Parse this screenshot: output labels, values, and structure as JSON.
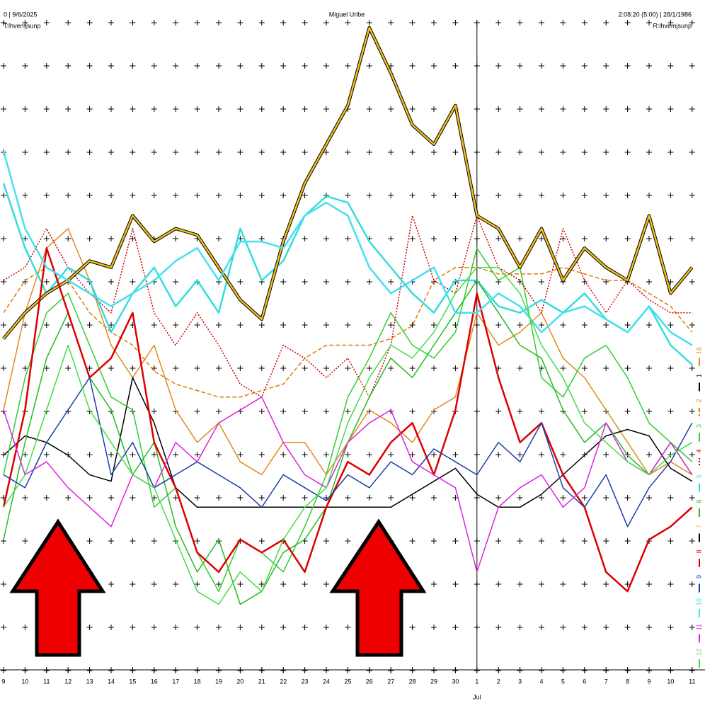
{
  "header": {
    "left": [
      "0 | 9/6/2025",
      "T:lhvemjsunp"
    ],
    "right": [
      "2:08:20 (5:00) | 28/1/1986",
      "R:lhvemjsunp"
    ]
  },
  "chart_data": {
    "type": "line",
    "title": "Miguel Uribe",
    "categories": [
      "9",
      "10",
      "11",
      "12",
      "13",
      "14",
      "15",
      "16",
      "17",
      "18",
      "19",
      "20",
      "21",
      "22",
      "23",
      "24",
      "25",
      "26",
      "27",
      "28",
      "29",
      "30",
      "1",
      "2",
      "3",
      "4",
      "5",
      "6",
      "7",
      "8",
      "9",
      "10",
      "11"
    ],
    "annotations": [
      "Jul"
    ],
    "ylim": [
      0,
      100
    ],
    "series": [
      {
        "name": "16",
        "color": "#e08a1e",
        "values": [
          40,
          55,
          65,
          68,
          60,
          50,
          45,
          50,
          40,
          35,
          38,
          32,
          30,
          35,
          35,
          30,
          35,
          40,
          38,
          35,
          40,
          42,
          55,
          50,
          52,
          55,
          48,
          45,
          40,
          35,
          30,
          32,
          30
        ]
      },
      {
        "name": "1",
        "color": "#000000",
        "values": [
          33,
          36,
          35,
          33,
          30,
          29,
          45,
          38,
          28,
          25,
          25,
          25,
          25,
          25,
          25,
          25,
          25,
          25,
          25,
          27,
          29,
          31,
          27,
          25,
          25,
          27,
          30,
          33,
          36,
          37,
          36,
          31,
          29
        ]
      },
      {
        "name": "2",
        "color": "#e07b00",
        "style": "dashed",
        "values": [
          55,
          60,
          62,
          60,
          55,
          52,
          50,
          46,
          44,
          43,
          42,
          42,
          43,
          44,
          48,
          50,
          50,
          50,
          51,
          53,
          60,
          62,
          62,
          61,
          61,
          61,
          62,
          61,
          60,
          60,
          58,
          56,
          52
        ]
      },
      {
        "name": "3",
        "color": "#33cc33",
        "values": [
          30,
          45,
          55,
          58,
          50,
          42,
          40,
          25,
          28,
          18,
          12,
          20,
          18,
          15,
          22,
          30,
          42,
          48,
          55,
          50,
          48,
          52,
          65,
          60,
          62,
          45,
          42,
          48,
          50,
          45,
          38,
          35,
          32
        ]
      },
      {
        "name": "4",
        "color": "#cc0000",
        "style": "dotted",
        "values": [
          60,
          62,
          68,
          62,
          58,
          55,
          68,
          55,
          50,
          55,
          50,
          44,
          42,
          50,
          48,
          45,
          48,
          42,
          50,
          70,
          60,
          58,
          70,
          62,
          60,
          55,
          68,
          60,
          55,
          60,
          57,
          55,
          55
        ]
      },
      {
        "name": "5",
        "color": "#33dddd",
        "values": [
          75,
          65,
          58,
          62,
          60,
          52,
          58,
          62,
          56,
          60,
          55,
          68,
          60,
          63,
          70,
          73,
          72,
          66,
          62,
          58,
          55,
          60,
          60,
          56,
          55,
          57,
          55,
          58,
          54,
          52,
          56,
          50,
          47
        ]
      },
      {
        "name": "6",
        "color": "#22bb22",
        "values": [
          20,
          35,
          48,
          55,
          45,
          40,
          30,
          35,
          22,
          15,
          20,
          10,
          12,
          18,
          20,
          25,
          35,
          42,
          48,
          45,
          50,
          55,
          60,
          55,
          50,
          48,
          40,
          35,
          38,
          33,
          30,
          35,
          30
        ]
      },
      {
        "name": "7",
        "color": "#f0c020",
        "outline": "#000000",
        "values": [
          51,
          55,
          58,
          60,
          63,
          62,
          70,
          66,
          68,
          67,
          62,
          57,
          54,
          66,
          75,
          81,
          87,
          99,
          92,
          84,
          81,
          87,
          70,
          68,
          62,
          68,
          60,
          65,
          62,
          60,
          70,
          58,
          62
        ]
      },
      {
        "name": "8",
        "color": "#dd0000",
        "values": [
          25,
          40,
          65,
          55,
          45,
          48,
          55,
          35,
          28,
          18,
          15,
          20,
          18,
          20,
          15,
          25,
          32,
          30,
          35,
          38,
          30,
          40,
          58,
          45,
          35,
          38,
          30,
          25,
          15,
          12,
          20,
          22,
          25
        ]
      },
      {
        "name": "9",
        "color": "#1a3fa8",
        "values": [
          30,
          28,
          35,
          40,
          45,
          30,
          35,
          28,
          30,
          32,
          30,
          28,
          25,
          30,
          28,
          26,
          30,
          28,
          32,
          30,
          34,
          32,
          30,
          35,
          32,
          38,
          28,
          25,
          30,
          22,
          28,
          32,
          38
        ]
      },
      {
        "name": "10",
        "color": "#44e0f0",
        "values": [
          80,
          68,
          62,
          60,
          58,
          56,
          58,
          60,
          63,
          65,
          60,
          66,
          66,
          65,
          70,
          72,
          70,
          62,
          58,
          60,
          62,
          55,
          55,
          58,
          56,
          52,
          55,
          56,
          54,
          52,
          56,
          52,
          50
        ]
      },
      {
        "name": "11",
        "color": "#dd22dd",
        "values": [
          40,
          30,
          32,
          28,
          25,
          22,
          30,
          28,
          35,
          32,
          38,
          40,
          42,
          35,
          30,
          28,
          35,
          38,
          40,
          32,
          30,
          28,
          15,
          25,
          28,
          30,
          25,
          28,
          38,
          32,
          30,
          35,
          30
        ]
      },
      {
        "name": "12",
        "color": "#44dd44",
        "values": [
          25,
          30,
          40,
          50,
          40,
          35,
          30,
          28,
          20,
          12,
          10,
          15,
          12,
          20,
          25,
          28,
          38,
          45,
          50,
          48,
          52,
          58,
          62,
          62,
          58,
          50,
          45,
          38,
          35,
          32,
          30,
          33,
          35
        ]
      }
    ]
  }
}
